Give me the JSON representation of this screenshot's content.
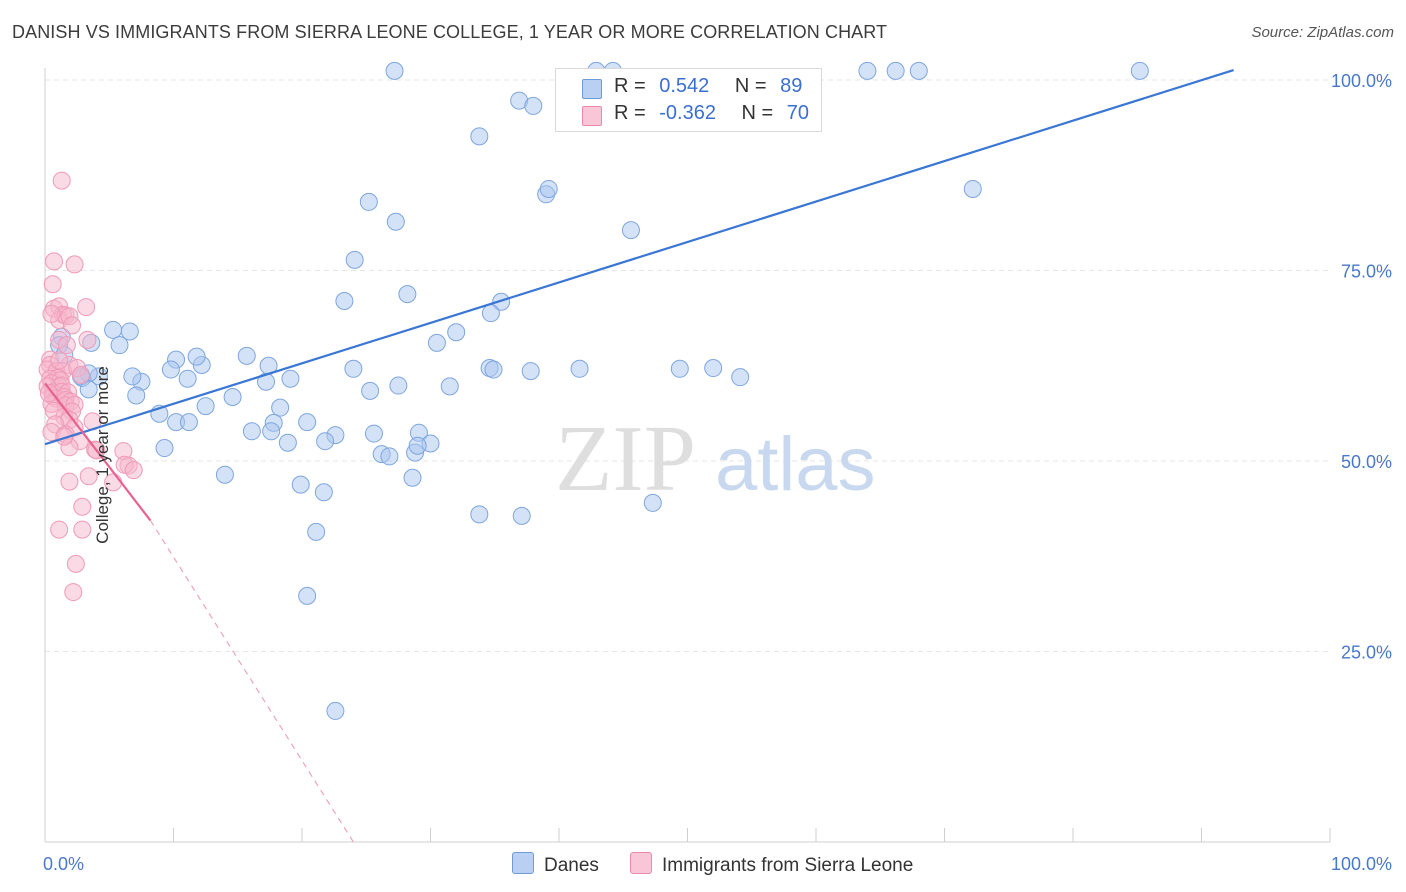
{
  "title": "DANISH VS IMMIGRANTS FROM SIERRA LEONE COLLEGE, 1 YEAR OR MORE CORRELATION CHART",
  "source": "Source: ZipAtlas.com",
  "watermark": {
    "zip": "ZIP",
    "atlas": "atlas"
  },
  "colors": {
    "blue": "#3a76d4",
    "blue_fill": "#a9c6ef",
    "pink": "#e8628f",
    "pink_fill": "#f6b6cb",
    "tick_text": "#4a78c8",
    "grid": "#e6e6e6"
  },
  "legend": {
    "rows": [
      {
        "r_label": "R =",
        "r_value": "0.542",
        "n_label": "N =",
        "n_value": "89"
      },
      {
        "r_label": "R =",
        "r_value": "-0.362",
        "n_label": "N =",
        "n_value": "70"
      }
    ]
  },
  "bottom_legend": {
    "series1": "Danes",
    "series2": "Immigrants from Sierra Leone"
  },
  "chart_data": {
    "type": "scatter",
    "xlabel": "",
    "ylabel": "College, 1 year or more",
    "xlim": [
      0,
      100
    ],
    "ylim": [
      0,
      100
    ],
    "x_tick_labels": [
      "0.0%",
      "100.0%"
    ],
    "y_tick_labels": [
      "25.0%",
      "50.0%",
      "75.0%",
      "100.0%"
    ],
    "y_ticks": [
      25,
      50,
      75,
      100
    ],
    "grid": true,
    "series": [
      {
        "name": "Danes",
        "r": 0.542,
        "n": 89,
        "trend": {
          "x": [
            0,
            92.5
          ],
          "y": [
            52.2,
            101.3
          ]
        },
        "points": [
          [
            27.2,
            101.2
          ],
          [
            42.9,
            101.2
          ],
          [
            44.2,
            101.2
          ],
          [
            64.0,
            101.2
          ],
          [
            66.2,
            101.2
          ],
          [
            68.0,
            101.2
          ],
          [
            85.2,
            101.2
          ],
          [
            36.9,
            97.3
          ],
          [
            38.0,
            96.6
          ],
          [
            33.8,
            92.6
          ],
          [
            39.0,
            85.0
          ],
          [
            39.2,
            85.7
          ],
          [
            72.2,
            85.7
          ],
          [
            25.2,
            84.0
          ],
          [
            27.3,
            81.4
          ],
          [
            45.6,
            80.3
          ],
          [
            24.1,
            76.4
          ],
          [
            28.2,
            71.9
          ],
          [
            23.3,
            71.0
          ],
          [
            35.5,
            70.9
          ],
          [
            34.7,
            69.4
          ],
          [
            32.0,
            66.9
          ],
          [
            30.5,
            65.5
          ],
          [
            1.3,
            66.3
          ],
          [
            1.1,
            65.2
          ],
          [
            5.3,
            67.2
          ],
          [
            6.6,
            67.0
          ],
          [
            3.6,
            65.5
          ],
          [
            5.8,
            65.2
          ],
          [
            1.5,
            63.9
          ],
          [
            10.2,
            63.3
          ],
          [
            12.2,
            62.6
          ],
          [
            11.8,
            63.7
          ],
          [
            15.7,
            63.8
          ],
          [
            17.4,
            62.5
          ],
          [
            9.8,
            62.0
          ],
          [
            7.5,
            60.4
          ],
          [
            6.8,
            61.1
          ],
          [
            11.1,
            60.8
          ],
          [
            4.2,
            61.1
          ],
          [
            2.9,
            60.9
          ],
          [
            3.4,
            61.5
          ],
          [
            2.8,
            61.1
          ],
          [
            24.0,
            62.1
          ],
          [
            34.6,
            62.2
          ],
          [
            41.6,
            62.1
          ],
          [
            49.4,
            62.1
          ],
          [
            54.1,
            61.0
          ],
          [
            19.1,
            60.8
          ],
          [
            17.2,
            60.4
          ],
          [
            27.5,
            59.9
          ],
          [
            25.3,
            59.2
          ],
          [
            3.4,
            59.4
          ],
          [
            7.1,
            58.6
          ],
          [
            14.6,
            58.4
          ],
          [
            12.5,
            57.2
          ],
          [
            18.3,
            57.0
          ],
          [
            8.9,
            56.2
          ],
          [
            10.2,
            55.1
          ],
          [
            11.2,
            55.1
          ],
          [
            17.8,
            55.0
          ],
          [
            20.4,
            55.1
          ],
          [
            17.6,
            53.9
          ],
          [
            16.1,
            53.9
          ],
          [
            22.6,
            53.4
          ],
          [
            25.6,
            53.6
          ],
          [
            29.1,
            53.7
          ],
          [
            18.9,
            52.4
          ],
          [
            21.8,
            52.6
          ],
          [
            30.0,
            52.3
          ],
          [
            28.8,
            51.1
          ],
          [
            9.3,
            51.7
          ],
          [
            26.2,
            50.9
          ],
          [
            26.8,
            50.6
          ],
          [
            14.0,
            48.2
          ],
          [
            28.6,
            47.8
          ],
          [
            19.9,
            46.9
          ],
          [
            21.7,
            45.9
          ],
          [
            33.8,
            43.0
          ],
          [
            37.1,
            42.8
          ],
          [
            47.3,
            44.5
          ],
          [
            21.1,
            40.7
          ],
          [
            20.4,
            32.3
          ],
          [
            22.6,
            17.2
          ],
          [
            52.0,
            62.2
          ],
          [
            34.9,
            62.0
          ],
          [
            37.8,
            61.8
          ],
          [
            31.5,
            59.8
          ],
          [
            29.0,
            52.0
          ]
        ]
      },
      {
        "name": "Immigrants from Sierra Leone",
        "r": -0.362,
        "n": 70,
        "trend": {
          "x": [
            0,
            8.2
          ],
          "y": [
            60.2,
            42.2
          ]
        },
        "trend_dashed": {
          "x": [
            8.2,
            24.0
          ],
          "y": [
            42.2,
            0
          ]
        },
        "points": [
          [
            1.3,
            86.8
          ],
          [
            0.7,
            76.2
          ],
          [
            2.3,
            75.8
          ],
          [
            0.6,
            73.2
          ],
          [
            0.7,
            70.0
          ],
          [
            1.1,
            70.3
          ],
          [
            3.2,
            70.2
          ],
          [
            1.4,
            69.2
          ],
          [
            1.1,
            68.5
          ],
          [
            1.6,
            69.1
          ],
          [
            0.5,
            69.3
          ],
          [
            1.9,
            69.0
          ],
          [
            2.1,
            67.8
          ],
          [
            1.1,
            65.9
          ],
          [
            3.3,
            65.9
          ],
          [
            1.7,
            65.2
          ],
          [
            0.4,
            63.3
          ],
          [
            0.4,
            62.6
          ],
          [
            1.9,
            62.6
          ],
          [
            0.2,
            62.0
          ],
          [
            0.9,
            61.8
          ],
          [
            1.4,
            61.8
          ],
          [
            2.5,
            62.2
          ],
          [
            0.4,
            60.8
          ],
          [
            1.0,
            60.9
          ],
          [
            1.2,
            60.6
          ],
          [
            0.5,
            60.2
          ],
          [
            1.1,
            59.8
          ],
          [
            1.3,
            59.9
          ],
          [
            0.2,
            59.8
          ],
          [
            0.6,
            59.0
          ],
          [
            1.3,
            59.1
          ],
          [
            1.8,
            59.0
          ],
          [
            0.6,
            58.5
          ],
          [
            0.9,
            58.2
          ],
          [
            1.5,
            58.4
          ],
          [
            1.6,
            58.0
          ],
          [
            2.0,
            57.8
          ],
          [
            0.5,
            57.5
          ],
          [
            1.6,
            57.3
          ],
          [
            2.3,
            57.4
          ],
          [
            0.7,
            56.6
          ],
          [
            2.1,
            56.5
          ],
          [
            1.5,
            55.8
          ],
          [
            1.9,
            55.4
          ],
          [
            3.7,
            55.2
          ],
          [
            0.8,
            54.8
          ],
          [
            2.3,
            54.4
          ],
          [
            0.5,
            53.8
          ],
          [
            1.6,
            53.5
          ],
          [
            2.7,
            52.6
          ],
          [
            3.9,
            51.5
          ],
          [
            1.9,
            51.8
          ],
          [
            4.0,
            51.4
          ],
          [
            6.1,
            51.3
          ],
          [
            6.5,
            49.4
          ],
          [
            6.2,
            49.5
          ],
          [
            6.9,
            48.8
          ],
          [
            3.4,
            48.0
          ],
          [
            5.3,
            47.2
          ],
          [
            1.9,
            47.3
          ],
          [
            2.9,
            44.0
          ],
          [
            1.1,
            41.0
          ],
          [
            2.9,
            41.0
          ],
          [
            2.4,
            36.5
          ],
          [
            2.2,
            32.8
          ],
          [
            1.5,
            53.2
          ],
          [
            0.3,
            58.9
          ],
          [
            1.1,
            63.2
          ],
          [
            2.8,
            61.3
          ]
        ]
      }
    ]
  }
}
